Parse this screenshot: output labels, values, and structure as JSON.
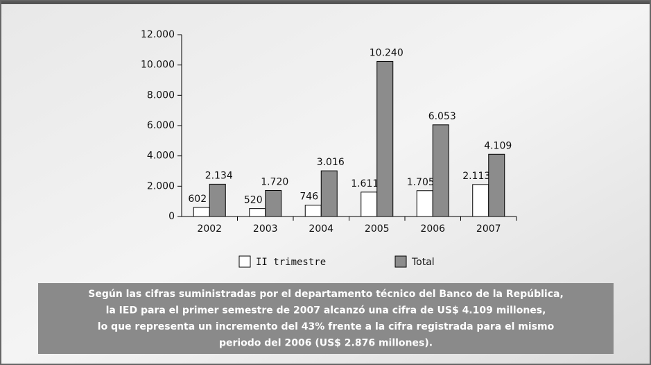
{
  "chart_data": {
    "type": "bar",
    "categories": [
      "2002",
      "2003",
      "2004",
      "2005",
      "2006",
      "2007"
    ],
    "series": [
      {
        "name": "II trimestre",
        "color": "#ffffff",
        "values": [
          602,
          520,
          746,
          1611,
          1705,
          2113
        ],
        "value_labels": [
          "602",
          "520",
          "746",
          "1.611",
          "1.705",
          "2.113"
        ]
      },
      {
        "name": "Total",
        "color": "#8c8c8c",
        "values": [
          2134,
          1720,
          3016,
          10240,
          6053,
          4109
        ],
        "value_labels": [
          "2.134",
          "1.720",
          "3.016",
          "10.240",
          "6.053",
          "4.109"
        ]
      }
    ],
    "ylim": [
      0,
      12000
    ],
    "yticks": [
      0,
      {
        "value": 2000,
        "label": "2.000"
      },
      {
        "value": 4000,
        "label": "4.000"
      },
      {
        "value": 6000,
        "label": "6.000"
      },
      {
        "value": 8000,
        "label": "8.000"
      },
      {
        "value": 10000,
        "label": "10.000"
      },
      {
        "value": 12000,
        "label": "12.000"
      }
    ],
    "annotation": [
      "Según las cifras suministradas por el departamento técnico del Banco de la República,",
      "la IED para el primer semestre de 2007 alcanzó una cifra de US$ 4.109 millones,",
      "lo que representa un incremento del 43% frente a la cifra registrada para el mismo",
      "periodo del 2006 (US$ 2.876 millones)."
    ]
  }
}
